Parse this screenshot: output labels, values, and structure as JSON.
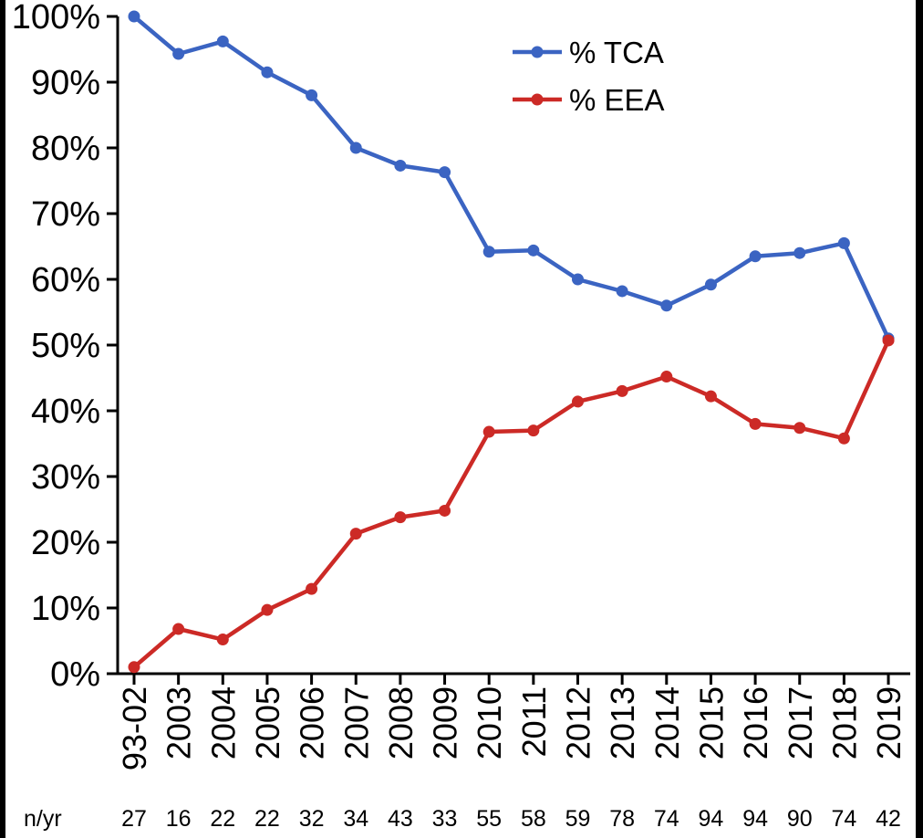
{
  "chart_data": {
    "type": "line",
    "categories": [
      "93-02",
      "2003",
      "2004",
      "2005",
      "2006",
      "2007",
      "2008",
      "2009",
      "2010",
      "2011",
      "2012",
      "2013",
      "2014",
      "2015",
      "2016",
      "2017",
      "2018",
      "2019"
    ],
    "series": [
      {
        "name": "% TCA",
        "color": "#3b64c2",
        "values": [
          100,
          94.3,
          96.2,
          91.5,
          88,
          80,
          77.3,
          76.3,
          64.2,
          64.4,
          60,
          58.2,
          56,
          59.2,
          63.5,
          64,
          65.5,
          51
        ]
      },
      {
        "name": "% EEA",
        "color": "#cc2a26",
        "values": [
          1,
          6.8,
          5.2,
          9.7,
          12.9,
          21.3,
          23.8,
          24.8,
          36.8,
          37,
          41.4,
          43,
          45.2,
          42.2,
          38,
          37.4,
          35.8,
          50.7
        ]
      }
    ],
    "ylim": [
      0,
      100
    ],
    "y_ticks": [
      "0%",
      "10%",
      "20%",
      "30%",
      "40%",
      "50%",
      "60%",
      "70%",
      "80%",
      "90%",
      "100%"
    ],
    "xlabel": "",
    "ylabel": "",
    "legend_position": "top-right",
    "grid": false,
    "counts_label": "n/yr",
    "counts": [
      "27",
      "16",
      "22",
      "22",
      "32",
      "34",
      "43",
      "33",
      "55",
      "58",
      "59",
      "78",
      "74",
      "94",
      "94",
      "90",
      "74",
      "42"
    ]
  }
}
